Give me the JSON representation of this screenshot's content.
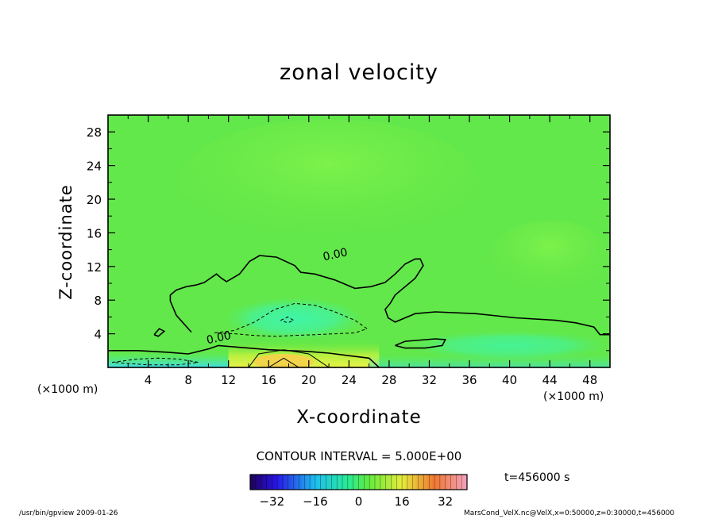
{
  "chart_data": {
    "type": "contour",
    "title": "zonal velocity",
    "xlabel": "X-coordinate",
    "ylabel": "Z-coordinate",
    "x_unit": "(×1000 m)",
    "y_unit": "(×1000 m)",
    "xlim": [
      0,
      50
    ],
    "ylim": [
      0,
      30
    ],
    "x_ticks": [
      4,
      8,
      12,
      16,
      20,
      24,
      28,
      32,
      36,
      40,
      44,
      48
    ],
    "y_ticks": [
      4,
      8,
      12,
      16,
      20,
      24,
      28
    ],
    "contour_interval_text": "CONTOUR INTERVAL = 5.000E+00",
    "contour_label": "0.00",
    "time_text": "t=456000  s",
    "colorbar": {
      "ticks": [
        -32,
        -16,
        0,
        16,
        32
      ],
      "range": [
        -40,
        40
      ]
    },
    "zero_contour": [
      [
        0,
        2
      ],
      [
        3,
        2
      ],
      [
        6,
        1.8
      ],
      [
        8,
        1.6
      ],
      [
        10,
        2.2
      ],
      [
        11,
        2.6
      ],
      [
        12,
        2.5
      ],
      [
        13,
        2.4
      ],
      [
        14,
        2.3
      ],
      [
        16,
        2.1
      ],
      [
        18,
        2
      ],
      [
        20,
        1.9
      ],
      [
        22,
        1.7
      ],
      [
        24,
        1.4
      ],
      [
        26,
        1.1
      ],
      [
        27,
        0
      ]
    ],
    "zero_contour_upper": [
      [
        8.3,
        4.2
      ],
      [
        6.8,
        6.2
      ],
      [
        6.2,
        7.9
      ],
      [
        6.2,
        8.6
      ],
      [
        6.8,
        9.2
      ],
      [
        7.8,
        9.6
      ],
      [
        8.8,
        9.8
      ],
      [
        9.6,
        10.1
      ],
      [
        10.2,
        10.6
      ],
      [
        10.8,
        11.1
      ],
      [
        11.3,
        10.6
      ],
      [
        11.8,
        10.2
      ],
      [
        13.1,
        11.1
      ],
      [
        14.1,
        12.6
      ],
      [
        15.1,
        13.3
      ],
      [
        16.8,
        13.1
      ],
      [
        18.6,
        12.1
      ],
      [
        19.2,
        11.3
      ],
      [
        20.6,
        11.1
      ],
      [
        22.6,
        10.4
      ],
      [
        24.6,
        9.4
      ],
      [
        26.2,
        9.6
      ],
      [
        27.6,
        10.1
      ],
      [
        28.6,
        11.1
      ],
      [
        29.6,
        12.3
      ],
      [
        30.6,
        12.9
      ],
      [
        31.1,
        12.9
      ],
      [
        31.4,
        12.1
      ],
      [
        30.6,
        10.6
      ],
      [
        29.6,
        9.6
      ],
      [
        28.6,
        8.6
      ],
      [
        28.1,
        7.6
      ],
      [
        27.6,
        6.9
      ],
      [
        27.9,
        5.9
      ],
      [
        28.6,
        5.4
      ],
      [
        30.6,
        6.4
      ],
      [
        32.6,
        6.6
      ],
      [
        36.6,
        6.4
      ],
      [
        40.6,
        5.9
      ],
      [
        44.6,
        5.6
      ],
      [
        46.6,
        5.3
      ],
      [
        48.4,
        4.8
      ],
      [
        49.0,
        3.9
      ],
      [
        50,
        3.9
      ]
    ],
    "zero_contour_closed": [
      [
        [
          28.6,
          2.6
        ],
        [
          29.6,
          3.1
        ],
        [
          32.6,
          3.4
        ],
        [
          33.6,
          3.3
        ],
        [
          33.3,
          2.6
        ],
        [
          31.6,
          2.3
        ],
        [
          29.6,
          2.3
        ],
        [
          28.6,
          2.6
        ]
      ],
      [
        [
          4.6,
          3.9
        ],
        [
          5.1,
          4.6
        ],
        [
          5.6,
          4.3
        ],
        [
          5.0,
          3.7
        ],
        [
          4.6,
          3.9
        ]
      ]
    ],
    "negative_contours_dashed": [
      [
        [
          10.6,
          4.1
        ],
        [
          12.6,
          4.4
        ],
        [
          14.6,
          5.4
        ],
        [
          16.6,
          6.9
        ],
        [
          18.6,
          7.6
        ],
        [
          20.6,
          7.4
        ],
        [
          22.6,
          6.6
        ],
        [
          24.6,
          5.6
        ],
        [
          25.8,
          4.6
        ],
        [
          24.6,
          4.1
        ],
        [
          22.6,
          4.0
        ],
        [
          20.6,
          3.9
        ],
        [
          18.6,
          3.8
        ],
        [
          16.6,
          3.7
        ],
        [
          14.6,
          3.8
        ],
        [
          12.6,
          4.0
        ],
        [
          10.6,
          4.1
        ]
      ],
      [
        [
          17.2,
          5.6
        ],
        [
          17.9,
          6.0
        ],
        [
          18.5,
          5.6
        ],
        [
          17.9,
          5.3
        ],
        [
          17.2,
          5.6
        ]
      ],
      [
        [
          0.4,
          0.6
        ],
        [
          3,
          1.0
        ],
        [
          5,
          1.1
        ],
        [
          7,
          1.0
        ],
        [
          9,
          0.6
        ],
        [
          7,
          0.3
        ],
        [
          4,
          0.3
        ],
        [
          0.4,
          0.6
        ]
      ]
    ]
  },
  "footer": {
    "left": "/usr/bin/gpview  2009-01-26",
    "right": "MarsCond_VelX.nc@VelX,x=0:50000,z=0:30000,t=456000"
  }
}
